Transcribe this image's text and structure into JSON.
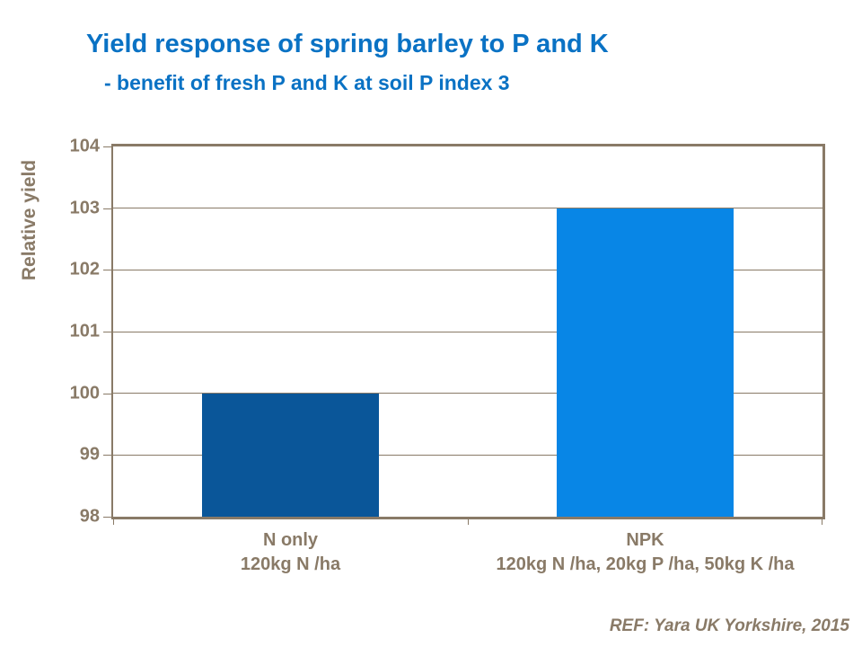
{
  "title": "Yield response of spring barley to P and K",
  "subtitle": "- benefit of fresh P and K at soil P index 3",
  "reference": "REF: Yara UK Yorkshire, 2015",
  "colors": {
    "title_blue": "#0a72c4",
    "axis_brown": "#897a67",
    "grid_brown": "#897a67",
    "bar_dark_blue": "#0a5699",
    "bar_light_blue": "#0886e6",
    "background": "#ffffff"
  },
  "chart_data": {
    "type": "bar",
    "title": "Yield response of spring barley to P and K",
    "subtitle": "- benefit of fresh P and K at soil P index 3",
    "xlabel": "",
    "ylabel": "Relative yield",
    "ylim": [
      98,
      104
    ],
    "yticks": [
      98,
      99,
      100,
      101,
      102,
      103,
      104
    ],
    "grid": true,
    "legend": false,
    "categories": [
      {
        "label": "N only",
        "detail": "120kg N /ha"
      },
      {
        "label": "NPK",
        "detail": "120kg N /ha, 20kg P /ha, 50kg K /ha"
      }
    ],
    "values": [
      100,
      103
    ],
    "bar_colors": [
      "#0a5699",
      "#0886e6"
    ],
    "annotation": "REF: Yara UK Yorkshire, 2015"
  }
}
